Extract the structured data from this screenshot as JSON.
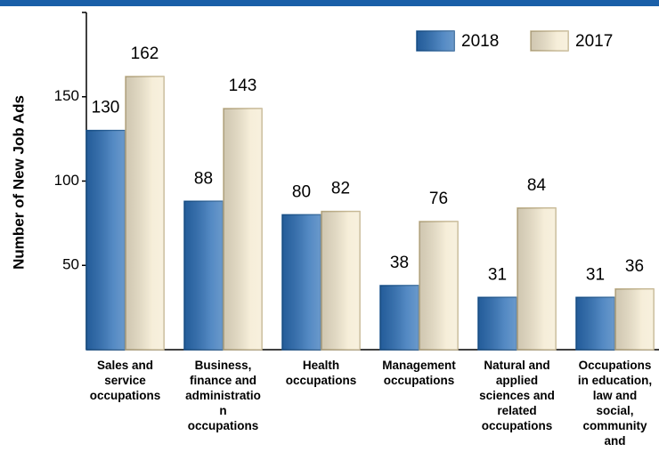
{
  "chart_data": {
    "type": "bar",
    "y_label": "Number of New Job Ads",
    "categories": [
      "Sales and\nservice\noccupations",
      "Business,\nfinance and\nadministratio\nn\noccupations",
      "Health\noccupations",
      "Management\noccupations",
      "Natural and\napplied\nsciences and\nrelated\noccupations",
      "Occupations\nin education,\nlaw and\nsocial,\ncommunity\nand"
    ],
    "series": [
      {
        "name": "2018",
        "color": "#2a6db5",
        "border": "#1a5590",
        "values": [
          130,
          88,
          80,
          38,
          31,
          31
        ]
      },
      {
        "name": "2017",
        "color": "#f4ead0",
        "border": "#c0b088",
        "values": [
          162,
          143,
          82,
          76,
          84,
          36
        ]
      }
    ],
    "ylim": [
      0,
      200
    ],
    "yticks": [
      50,
      100,
      150
    ],
    "grid": false,
    "legend": "top-right"
  }
}
